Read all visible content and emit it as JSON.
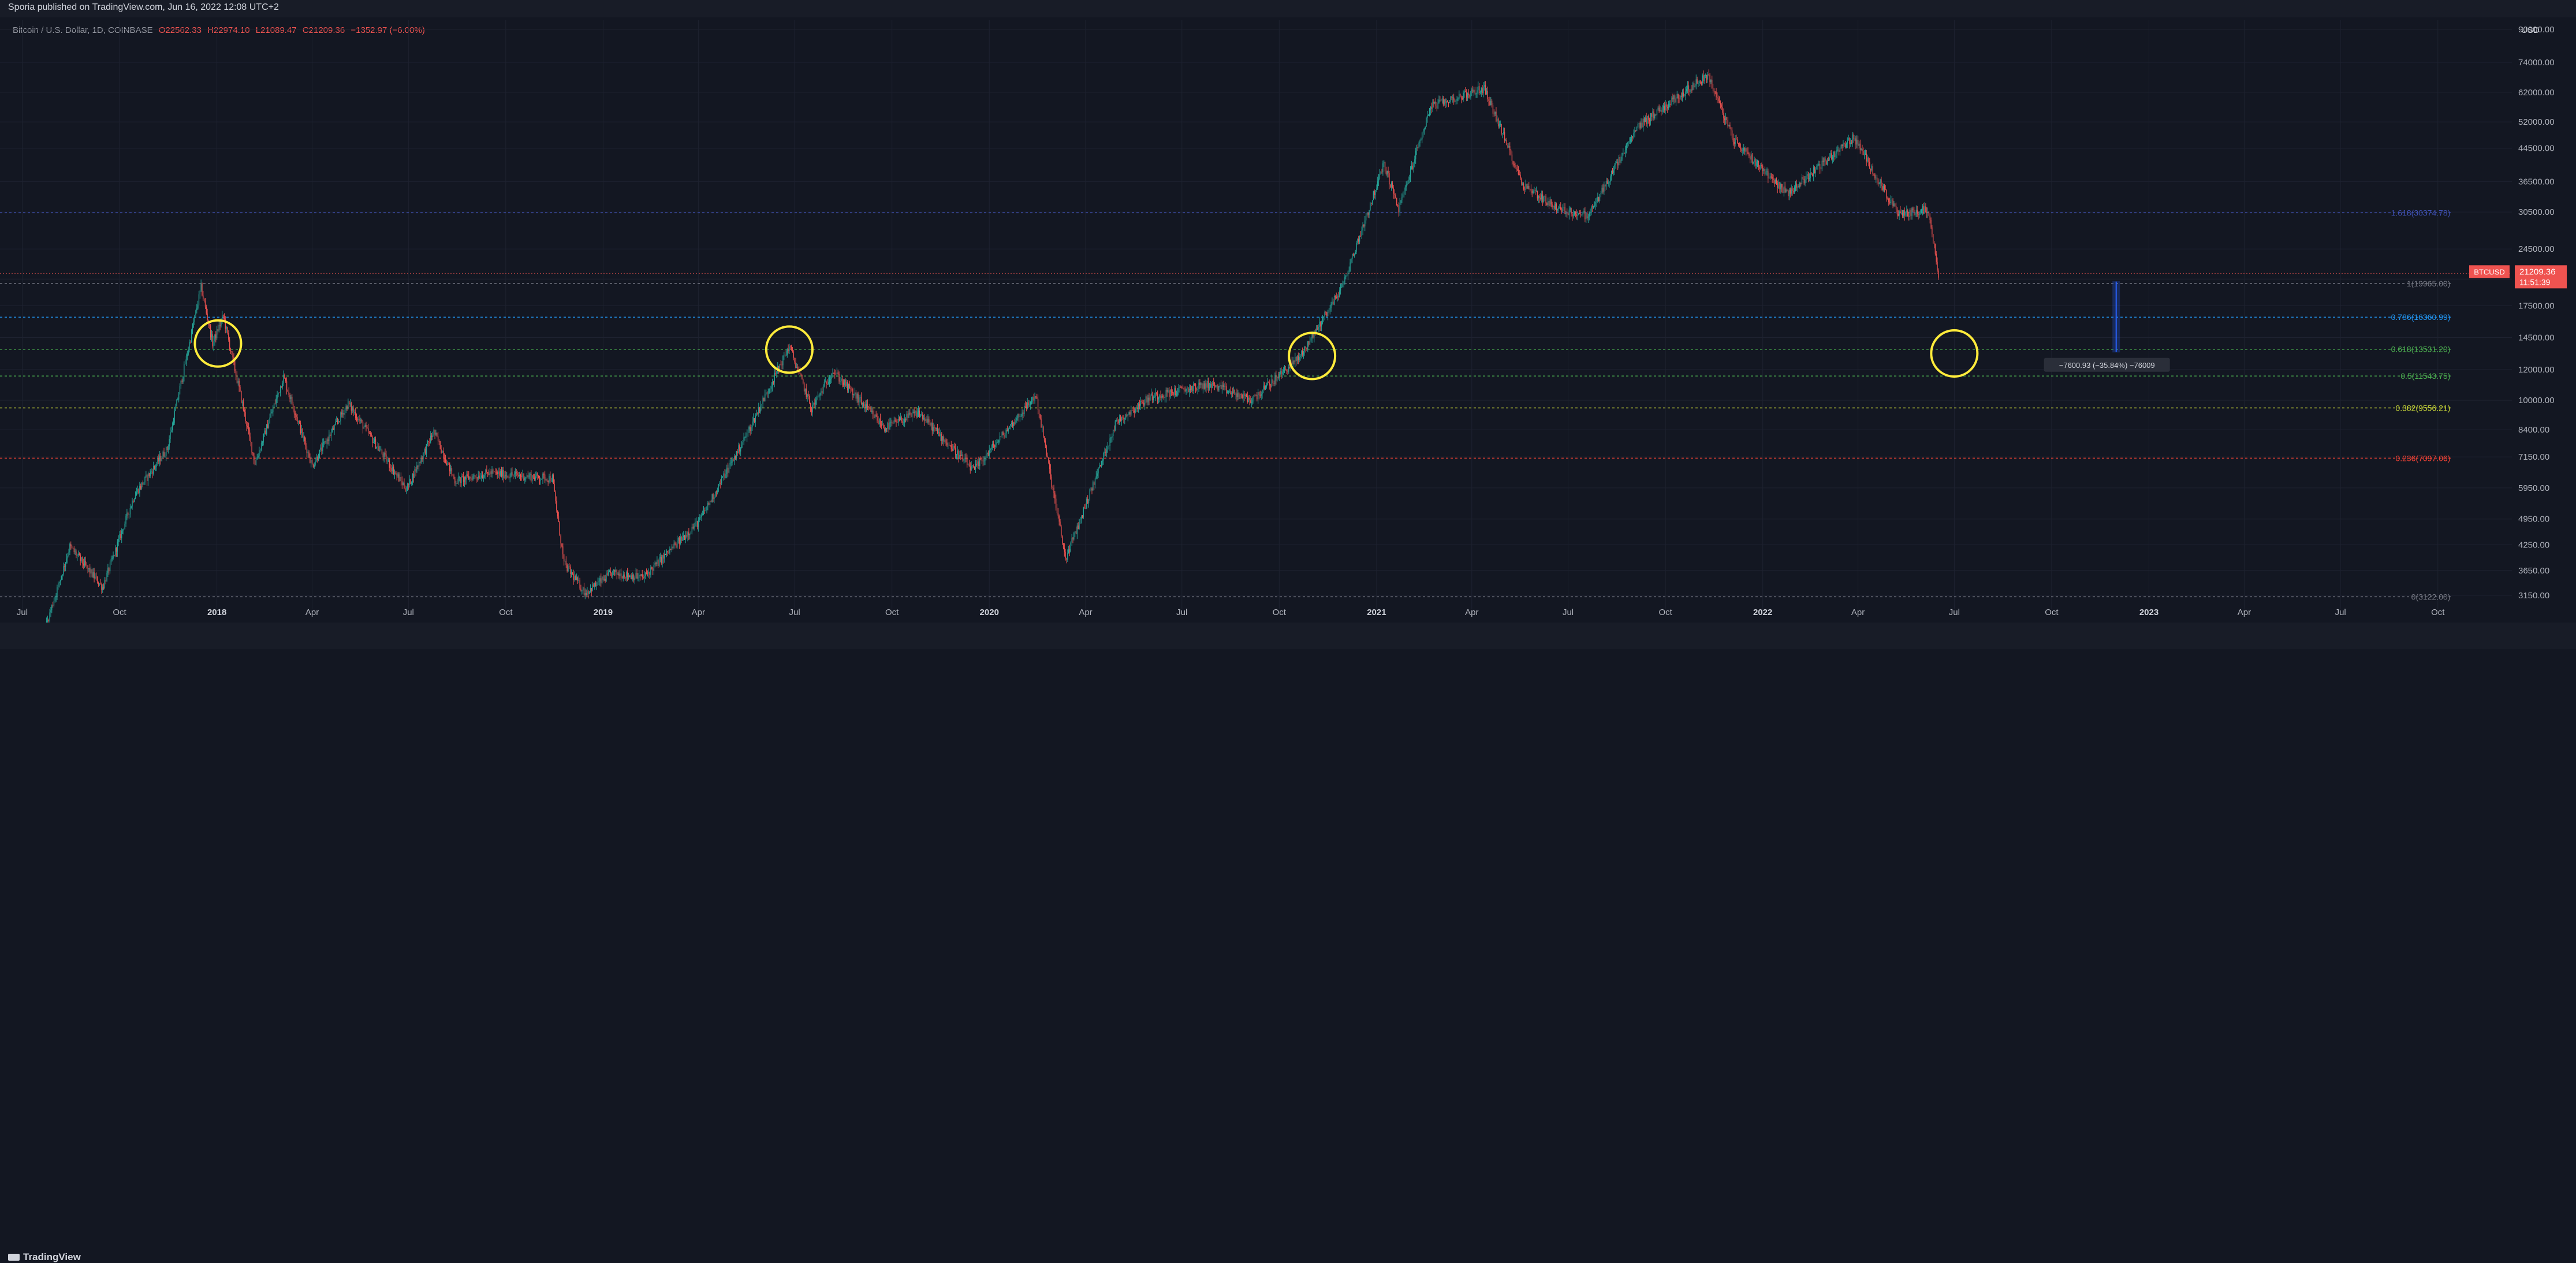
{
  "header": {
    "publisher": "Sporia published on TradingView.com, Jun 16, 2022 12:08 UTC+2",
    "symbol_name": "Bitcoin / U.S. Dollar, 1D, COINBASE",
    "open": "O22562.33",
    "high": "H22974.10",
    "low": "L21089.47",
    "close": "C21209.36",
    "change": "−1352.97 (−6.00%)",
    "currency": "USD"
  },
  "footer": {
    "brand": "TradingView"
  },
  "colors": {
    "background": "#131722",
    "up": "#26a69a",
    "down": "#ef5350",
    "circle": "#ffeb3b",
    "measure": "#2962ff",
    "fib_1618": "#3f51b5",
    "fib_1": "#787b86",
    "fib_0786": "#2196f3",
    "fib_0618": "#4caf50",
    "fib_05": "#4caf50",
    "fib_0382": "#cddc39",
    "fib_0236": "#f44336",
    "fib_0": "#787b86"
  },
  "chart_data": {
    "type": "candlestick",
    "symbol": "BTCUSD",
    "exchange": "COINBASE",
    "interval": "1D",
    "y_scale": "log",
    "ylim": [
      2900,
      95000
    ],
    "xlim": [
      "2017-06-10",
      "2023-12-10"
    ],
    "price_ticks": [
      "90000.00",
      "74000.00",
      "62000.00",
      "52000.00",
      "44500.00",
      "36500.00",
      "30500.00",
      "24500.00",
      "20500.00",
      "17500.00",
      "14500.00",
      "12000.00",
      "10000.00",
      "8400.00",
      "7150.00",
      "5950.00",
      "4950.00",
      "4250.00",
      "3650.00",
      "3150.00"
    ],
    "time_ticks": [
      {
        "label": "Jul",
        "date": "2017-07-01",
        "year": false
      },
      {
        "label": "Oct",
        "date": "2017-10-01",
        "year": false
      },
      {
        "label": "2018",
        "date": "2018-01-01",
        "year": true
      },
      {
        "label": "Apr",
        "date": "2018-04-01",
        "year": false
      },
      {
        "label": "Jul",
        "date": "2018-07-01",
        "year": false
      },
      {
        "label": "Oct",
        "date": "2018-10-01",
        "year": false
      },
      {
        "label": "2019",
        "date": "2019-01-01",
        "year": true
      },
      {
        "label": "Apr",
        "date": "2019-04-01",
        "year": false
      },
      {
        "label": "Jul",
        "date": "2019-07-01",
        "year": false
      },
      {
        "label": "Oct",
        "date": "2019-10-01",
        "year": false
      },
      {
        "label": "2020",
        "date": "2020-01-01",
        "year": true
      },
      {
        "label": "Apr",
        "date": "2020-04-01",
        "year": false
      },
      {
        "label": "Jul",
        "date": "2020-07-01",
        "year": false
      },
      {
        "label": "Oct",
        "date": "2020-10-01",
        "year": false
      },
      {
        "label": "2021",
        "date": "2021-01-01",
        "year": true
      },
      {
        "label": "Apr",
        "date": "2021-04-01",
        "year": false
      },
      {
        "label": "Jul",
        "date": "2021-07-01",
        "year": false
      },
      {
        "label": "Oct",
        "date": "2021-10-01",
        "year": false
      },
      {
        "label": "2022",
        "date": "2022-01-01",
        "year": true
      },
      {
        "label": "Apr",
        "date": "2022-04-01",
        "year": false
      },
      {
        "label": "Jul",
        "date": "2022-07-01",
        "year": false
      },
      {
        "label": "Oct",
        "date": "2022-10-01",
        "year": false
      },
      {
        "label": "2023",
        "date": "2023-01-01",
        "year": true
      },
      {
        "label": "Apr",
        "date": "2023-04-01",
        "year": false
      },
      {
        "label": "Jul",
        "date": "2023-07-01",
        "year": false
      },
      {
        "label": "Oct",
        "date": "2023-10-01",
        "year": false
      }
    ],
    "price_path": [
      {
        "date": "2017-06-15",
        "price": 2500
      },
      {
        "date": "2017-07-15",
        "price": 2200
      },
      {
        "date": "2017-08-15",
        "price": 4200
      },
      {
        "date": "2017-09-15",
        "price": 3300
      },
      {
        "date": "2017-10-15",
        "price": 5700
      },
      {
        "date": "2017-11-15",
        "price": 7500
      },
      {
        "date": "2017-12-17",
        "price": 19500
      },
      {
        "date": "2017-12-28",
        "price": 14000
      },
      {
        "date": "2018-01-07",
        "price": 16500
      },
      {
        "date": "2018-02-06",
        "price": 6900
      },
      {
        "date": "2018-03-05",
        "price": 11500
      },
      {
        "date": "2018-04-01",
        "price": 6800
      },
      {
        "date": "2018-05-05",
        "price": 9800
      },
      {
        "date": "2018-06-29",
        "price": 5900
      },
      {
        "date": "2018-07-25",
        "price": 8300
      },
      {
        "date": "2018-08-14",
        "price": 6200
      },
      {
        "date": "2018-09-15",
        "price": 6500
      },
      {
        "date": "2018-11-14",
        "price": 6300
      },
      {
        "date": "2018-11-25",
        "price": 3800
      },
      {
        "date": "2018-12-15",
        "price": 3200
      },
      {
        "date": "2019-01-10",
        "price": 3600
      },
      {
        "date": "2019-02-08",
        "price": 3500
      },
      {
        "date": "2019-04-02",
        "price": 4900
      },
      {
        "date": "2019-05-15",
        "price": 8000
      },
      {
        "date": "2019-06-26",
        "price": 13800
      },
      {
        "date": "2019-07-17",
        "price": 9500
      },
      {
        "date": "2019-08-06",
        "price": 11900
      },
      {
        "date": "2019-09-24",
        "price": 8500
      },
      {
        "date": "2019-10-26",
        "price": 9300
      },
      {
        "date": "2019-12-17",
        "price": 6600
      },
      {
        "date": "2020-02-14",
        "price": 10300
      },
      {
        "date": "2020-03-13",
        "price": 3900
      },
      {
        "date": "2020-04-30",
        "price": 8800
      },
      {
        "date": "2020-06-01",
        "price": 10200
      },
      {
        "date": "2020-07-27",
        "price": 11000
      },
      {
        "date": "2020-09-05",
        "price": 10000
      },
      {
        "date": "2020-10-21",
        "price": 13000
      },
      {
        "date": "2020-11-30",
        "price": 19700
      },
      {
        "date": "2021-01-08",
        "price": 40500
      },
      {
        "date": "2021-01-22",
        "price": 31000
      },
      {
        "date": "2021-02-21",
        "price": 57000
      },
      {
        "date": "2021-04-13",
        "price": 63500
      },
      {
        "date": "2021-05-19",
        "price": 36000
      },
      {
        "date": "2021-06-22",
        "price": 31000
      },
      {
        "date": "2021-07-20",
        "price": 29800
      },
      {
        "date": "2021-09-06",
        "price": 51000
      },
      {
        "date": "2021-11-10",
        "price": 68800
      },
      {
        "date": "2021-12-04",
        "price": 47000
      },
      {
        "date": "2022-01-24",
        "price": 34000
      },
      {
        "date": "2022-03-28",
        "price": 47500
      },
      {
        "date": "2022-05-09",
        "price": 30000
      },
      {
        "date": "2022-06-06",
        "price": 31000
      },
      {
        "date": "2022-06-16",
        "price": 21209
      }
    ],
    "fib_levels": [
      {
        "ratio": "1.618",
        "price": 30374.78,
        "label": "1.618(30374.78)",
        "color": "#3f51b5"
      },
      {
        "ratio": "1",
        "price": 19965.0,
        "label": "1(19965.00)",
        "color": "#787b86"
      },
      {
        "ratio": "0.786",
        "price": 16360.99,
        "label": "0.786(16360.99)",
        "color": "#2196f3"
      },
      {
        "ratio": "0.618",
        "price": 13531.2,
        "label": "0.618(13531.20)",
        "color": "#4caf50"
      },
      {
        "ratio": "0.5",
        "price": 11543.75,
        "label": "0.5(11543.75)",
        "color": "#4caf50"
      },
      {
        "ratio": "0.382",
        "price": 9556.21,
        "label": "0.382(9556.21)",
        "color": "#cddc39"
      },
      {
        "ratio": "0.236",
        "price": 7097.06,
        "label": "0.236(7097.06)",
        "color": "#f44336"
      },
      {
        "ratio": "0",
        "price": 3122.0,
        "label": "0(3122.00)",
        "color": "#787b86"
      }
    ],
    "circles": [
      {
        "date": "2018-01-02",
        "price": 14000
      },
      {
        "date": "2019-06-26",
        "price": 13500
      },
      {
        "date": "2020-11-01",
        "price": 13000
      },
      {
        "date": "2022-07-01",
        "price": 13200
      }
    ],
    "measure": {
      "date": "2022-12-01",
      "from_price": 20200,
      "to_price": 13300,
      "label": "−7600.93 (−35.84%) −76009"
    },
    "price_badge": {
      "symbol": "BTCUSD",
      "price": "21209.36",
      "countdown": "11:51:39",
      "value": 21209.36
    },
    "current_price_line": 21209.36
  }
}
